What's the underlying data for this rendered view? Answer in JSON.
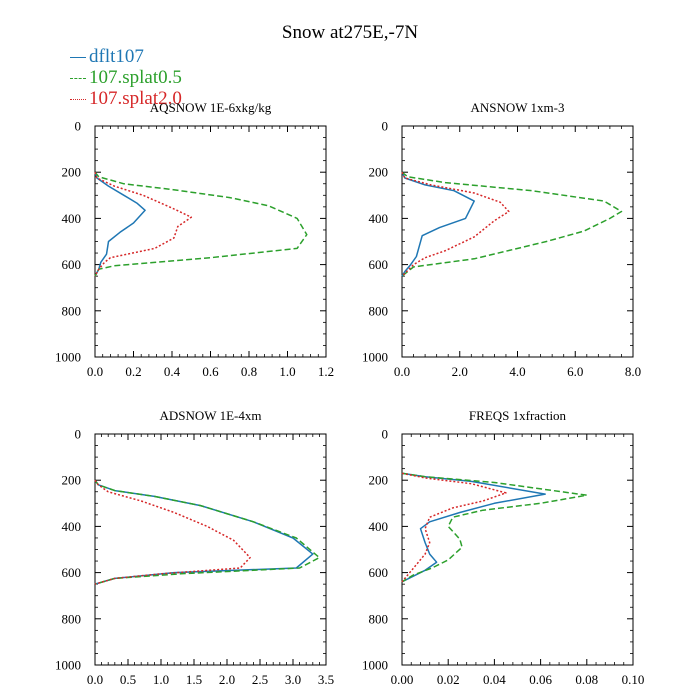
{
  "title": "Snow at275E,-7N",
  "colors": {
    "s0": "#1f77b4",
    "s1": "#2ca02c",
    "s2": "#d62728"
  },
  "legend": [
    {
      "label": "dflt107",
      "color": "#1f77b4",
      "style": "solid"
    },
    {
      "label": "107.splat0.5",
      "color": "#2ca02c",
      "style": "dashed"
    },
    {
      "label": "107.splat2.0",
      "color": "#d62728",
      "style": "dotted"
    }
  ],
  "chart_data": [
    {
      "type": "line",
      "title": "AQSNOW  1E-6xkg/kg",
      "xlim": [
        0,
        1.2
      ],
      "ylim": [
        1000,
        0
      ],
      "xticks": [
        "0.0",
        "0.2",
        "0.4",
        "0.6",
        "0.8",
        "1.0",
        "1.2"
      ],
      "yticks": [
        "0",
        "200",
        "400",
        "600",
        "800",
        "1000"
      ],
      "series": [
        {
          "name": "dflt107",
          "style": "solid",
          "color": "#1f77b4",
          "x": [
            0,
            0.01,
            0.07,
            0.15,
            0.22,
            0.26,
            0.2,
            0.13,
            0.07,
            0.06,
            0.03,
            0.02,
            0
          ],
          "y": [
            200,
            225,
            260,
            300,
            335,
            365,
            420,
            460,
            500,
            555,
            590,
            620,
            650
          ]
        },
        {
          "name": "107.splat0.5",
          "style": "dashed",
          "color": "#2ca02c",
          "x": [
            0,
            0.02,
            0.15,
            0.4,
            0.7,
            0.9,
            1.05,
            1.1,
            1.05,
            0.6,
            0.1,
            0.02,
            0
          ],
          "y": [
            200,
            220,
            250,
            275,
            310,
            345,
            400,
            470,
            530,
            570,
            605,
            620,
            650
          ]
        },
        {
          "name": "107.splat2.0",
          "style": "dotted",
          "color": "#d62728",
          "x": [
            0,
            0.01,
            0.1,
            0.25,
            0.4,
            0.5,
            0.43,
            0.41,
            0.31,
            0.08,
            0.05,
            0.02,
            0
          ],
          "y": [
            200,
            225,
            260,
            300,
            355,
            395,
            435,
            485,
            530,
            570,
            590,
            620,
            650
          ]
        }
      ]
    },
    {
      "type": "line",
      "title": "ANSNOW  1xm-3",
      "xlim": [
        0,
        8
      ],
      "ylim": [
        1000,
        0
      ],
      "xticks": [
        "0.0",
        "2.0",
        "4.0",
        "6.0",
        "8.0"
      ],
      "yticks": [
        "0",
        "200",
        "400",
        "600",
        "800",
        "1000"
      ],
      "series": [
        {
          "name": "dflt107",
          "style": "solid",
          "color": "#1f77b4",
          "x": [
            0,
            0.1,
            0.8,
            1.8,
            2.5,
            2.2,
            1.3,
            0.7,
            0.5,
            0.3,
            0.1,
            0
          ],
          "y": [
            200,
            225,
            255,
            280,
            325,
            400,
            440,
            475,
            565,
            600,
            630,
            650
          ]
        },
        {
          "name": "107.splat0.5",
          "style": "dashed",
          "color": "#2ca02c",
          "x": [
            0,
            0.2,
            1.5,
            4.5,
            7.0,
            7.6,
            7.2,
            6.3,
            5.0,
            2.5,
            0.4,
            0
          ],
          "y": [
            200,
            220,
            245,
            280,
            325,
            370,
            400,
            455,
            500,
            575,
            610,
            650
          ]
        },
        {
          "name": "107.splat2.0",
          "style": "dotted",
          "color": "#d62728",
          "x": [
            0,
            0.1,
            1.0,
            2.5,
            3.4,
            3.7,
            3.2,
            2.5,
            1.5,
            0.8,
            0.4,
            0
          ],
          "y": [
            200,
            225,
            255,
            290,
            330,
            370,
            410,
            480,
            540,
            570,
            600,
            650
          ]
        }
      ]
    },
    {
      "type": "line",
      "title": "ADSNOW  1E-4xm",
      "xlim": [
        0,
        3.5
      ],
      "ylim": [
        1000,
        0
      ],
      "xticks": [
        "0.0",
        "0.5",
        "1.0",
        "1.5",
        "2.0",
        "2.5",
        "3.0",
        "3.5"
      ],
      "yticks": [
        "0",
        "200",
        "400",
        "600",
        "800",
        "1000"
      ],
      "series": [
        {
          "name": "dflt107",
          "style": "solid",
          "color": "#1f77b4",
          "x": [
            0,
            0.05,
            0.3,
            0.9,
            1.6,
            2.4,
            3.0,
            3.3,
            3.05,
            1.2,
            0.3,
            0
          ],
          "y": [
            200,
            220,
            245,
            270,
            310,
            380,
            450,
            520,
            580,
            600,
            625,
            650
          ]
        },
        {
          "name": "107.splat0.5",
          "style": "dashed",
          "color": "#2ca02c",
          "x": [
            0,
            0.05,
            0.3,
            0.9,
            1.6,
            2.4,
            3.05,
            3.4,
            3.1,
            1.3,
            0.3,
            0
          ],
          "y": [
            200,
            220,
            245,
            270,
            310,
            380,
            450,
            535,
            580,
            605,
            625,
            650
          ]
        },
        {
          "name": "107.splat2.0",
          "style": "dotted",
          "color": "#d62728",
          "x": [
            0,
            0.05,
            0.2,
            0.7,
            1.2,
            1.7,
            2.1,
            2.35,
            2.2,
            1.0,
            0.3,
            0
          ],
          "y": [
            200,
            220,
            250,
            290,
            340,
            400,
            460,
            535,
            580,
            605,
            625,
            650
          ]
        }
      ]
    },
    {
      "type": "line",
      "title": "FREQS  1xfraction",
      "xlim": [
        0,
        0.1
      ],
      "ylim": [
        1000,
        0
      ],
      "xticks": [
        "0.00",
        "0.02",
        "0.04",
        "0.06",
        "0.08",
        "0.10"
      ],
      "yticks": [
        "0",
        "200",
        "400",
        "600",
        "800",
        "1000"
      ],
      "series": [
        {
          "name": "dflt107",
          "style": "solid",
          "color": "#1f77b4",
          "x": [
            0,
            0.01,
            0.03,
            0.062,
            0.04,
            0.025,
            0.012,
            0.008,
            0.01,
            0.012,
            0.015,
            0.01,
            0
          ],
          "y": [
            170,
            185,
            205,
            260,
            300,
            340,
            380,
            410,
            470,
            520,
            555,
            590,
            640
          ]
        },
        {
          "name": "107.splat0.5",
          "style": "dashed",
          "color": "#2ca02c",
          "x": [
            0,
            0.01,
            0.04,
            0.08,
            0.06,
            0.035,
            0.022,
            0.02,
            0.025,
            0.026,
            0.02,
            0.013,
            0.005,
            0
          ],
          "y": [
            170,
            185,
            210,
            265,
            300,
            330,
            360,
            400,
            455,
            490,
            545,
            580,
            610,
            640
          ]
        },
        {
          "name": "107.splat2.0",
          "style": "dotted",
          "color": "#d62728",
          "x": [
            0,
            0.01,
            0.03,
            0.045,
            0.035,
            0.022,
            0.012,
            0.01,
            0.012,
            0.01,
            0.005,
            0
          ],
          "y": [
            170,
            190,
            215,
            255,
            290,
            320,
            360,
            410,
            470,
            520,
            580,
            640
          ]
        }
      ]
    }
  ]
}
